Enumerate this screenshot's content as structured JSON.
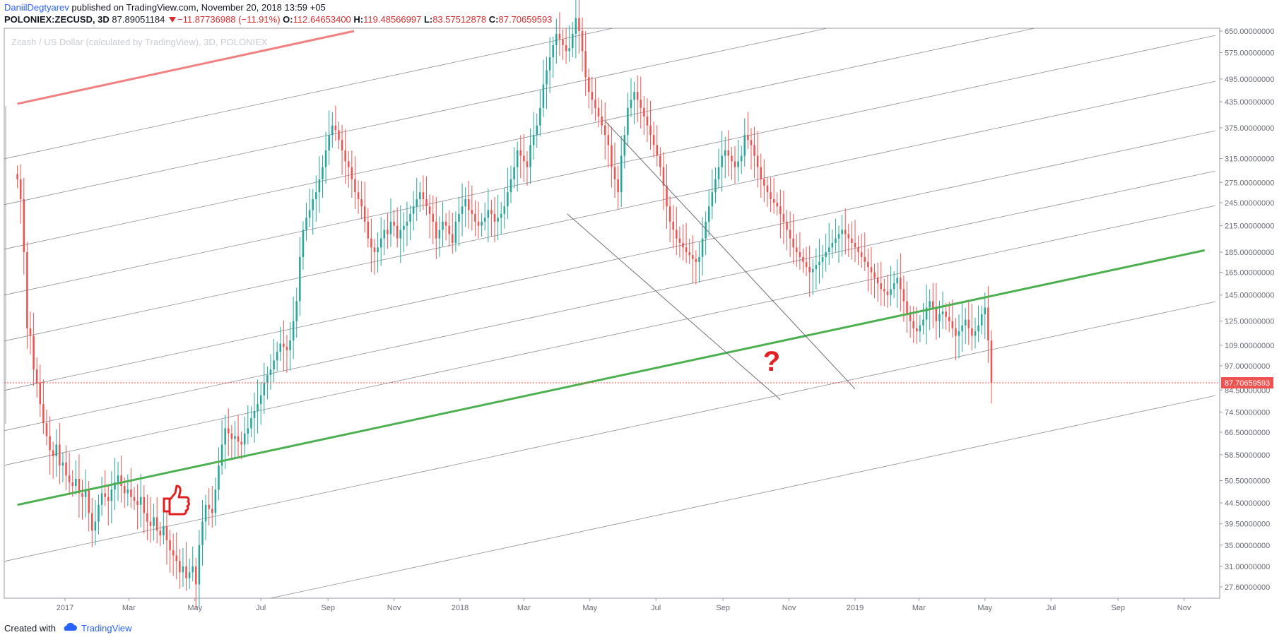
{
  "header": {
    "author": "DaniilDegtyarev",
    "published": "published on TradingView.com, November 20, 2018 13:59 +05",
    "symbol": "POLONIEX:ZECUSD, 3D",
    "last": "87.89051184",
    "change": "−11.87736988 (−11.91%)",
    "open_label": "O:",
    "open": "112.64653400",
    "high_label": "H:",
    "high": "119.48566997",
    "low_label": "L:",
    "low": "83.57512878",
    "close_label": "C:",
    "close": "87.70659593"
  },
  "watermark": "Zcash / US Dollar (calculated by TradingView), 3D, POLONIEX",
  "footer": {
    "created": "Created with",
    "brand": "TradingView"
  },
  "colors": {
    "up": "#26a69a",
    "down": "#ef5350",
    "green_line": "#4caf50",
    "red_line": "#f28080",
    "price_tag": "#ef5350"
  },
  "icons": [
    "thumbs-up-icon",
    "tradingview-cloud-icon"
  ],
  "chart_data": {
    "type": "candlestick",
    "y_scale": "log",
    "y_ticks": [
      "650.00000000",
      "575.00000000",
      "495.00000000",
      "435.00000000",
      "375.00000000",
      "315.00000000",
      "275.00000000",
      "245.00000000",
      "215.00000000",
      "185.00000000",
      "165.00000000",
      "145.00000000",
      "125.00000000",
      "109.00000000",
      "97.00000000",
      "84.50000000",
      "74.50000000",
      "66.50000000",
      "58.50000000",
      "50.50000000",
      "44.50000000",
      "39.50000000",
      "35.00000000",
      "31.00000000",
      "27.60000000"
    ],
    "x_ticks": [
      "2017",
      "Mar",
      "May",
      "Jul",
      "Sep",
      "Nov",
      "2018",
      "Mar",
      "May",
      "Jul",
      "Sep",
      "Nov",
      "2019",
      "Mar",
      "May",
      "Jul",
      "Sep",
      "Nov"
    ],
    "last_price_label": "87.70659593",
    "annotations": [
      "?"
    ],
    "closes": [
      280,
      250,
      185,
      120,
      115,
      95,
      88,
      78,
      70,
      65,
      60,
      58,
      62,
      55,
      56,
      52,
      50,
      49,
      51,
      47,
      46,
      48,
      42,
      38,
      40,
      44,
      47,
      46,
      45,
      48,
      50,
      52,
      49,
      47,
      48,
      46,
      45,
      44,
      46,
      42,
      40,
      39,
      41,
      38,
      37,
      39,
      36,
      34,
      33,
      32,
      30,
      31,
      29,
      30,
      31,
      28,
      35,
      40,
      44,
      43,
      42,
      48,
      55,
      62,
      68,
      66,
      64,
      65,
      63,
      62,
      66,
      68,
      72,
      75,
      78,
      82,
      88,
      92,
      95,
      100,
      105,
      110,
      108,
      106,
      112,
      125,
      140,
      180,
      210,
      225,
      235,
      250,
      260,
      280,
      300,
      330,
      360,
      380,
      370,
      350,
      330,
      310,
      300,
      280,
      260,
      250,
      240,
      220,
      200,
      190,
      185,
      190,
      200,
      210,
      205,
      220,
      215,
      200,
      210,
      215,
      220,
      230,
      240,
      250,
      260,
      250,
      240,
      230,
      220,
      200,
      210,
      220,
      215,
      205,
      195,
      220,
      230,
      240,
      250,
      235,
      230,
      220,
      215,
      220,
      225,
      235,
      230,
      220,
      225,
      230,
      240,
      260,
      280,
      300,
      330,
      320,
      310,
      300,
      340,
      360,
      380,
      420,
      480,
      520,
      560,
      600,
      640,
      620,
      600,
      580,
      590,
      640,
      700,
      650,
      580,
      500,
      460,
      440,
      420,
      400,
      380,
      360,
      340,
      300,
      280,
      260,
      320,
      360,
      420,
      440,
      460,
      440,
      420,
      400,
      380,
      360,
      340,
      320,
      300,
      270,
      240,
      220,
      210,
      200,
      195,
      190,
      185,
      182,
      178,
      175,
      180,
      200,
      220,
      240,
      260,
      280,
      300,
      320,
      330,
      320,
      310,
      300,
      310,
      320,
      360,
      350,
      340,
      320,
      300,
      280,
      270,
      260,
      250,
      245,
      240,
      230,
      220,
      210,
      200,
      190,
      185,
      180,
      175,
      170,
      165,
      168,
      172,
      175,
      180,
      185,
      190,
      195,
      200,
      205,
      210,
      205,
      200,
      195,
      190,
      185,
      180,
      175,
      170,
      165,
      160,
      155,
      150,
      148,
      145,
      150,
      155,
      160,
      150,
      140,
      130,
      125,
      120,
      118,
      122,
      126,
      135,
      140,
      135,
      125,
      130,
      132,
      128,
      125,
      120,
      115,
      118,
      122,
      126,
      120,
      115,
      118,
      122,
      130,
      135,
      112,
      88
    ],
    "lines": {
      "green_trend": [
        [
          "2016-11-18",
          44
        ],
        [
          "2019-11-20",
          187
        ]
      ],
      "red_trend": [
        [
          "2016-11-18",
          430
        ],
        [
          "2017-09-25",
          650
        ]
      ],
      "downtrend_upper": [
        [
          "2018-05-15",
          390
        ],
        [
          "2019-01-01",
          85
        ]
      ],
      "downtrend_lower": [
        [
          "2018-04-10",
          230
        ],
        [
          "2018-10-24",
          80
        ]
      ]
    }
  }
}
